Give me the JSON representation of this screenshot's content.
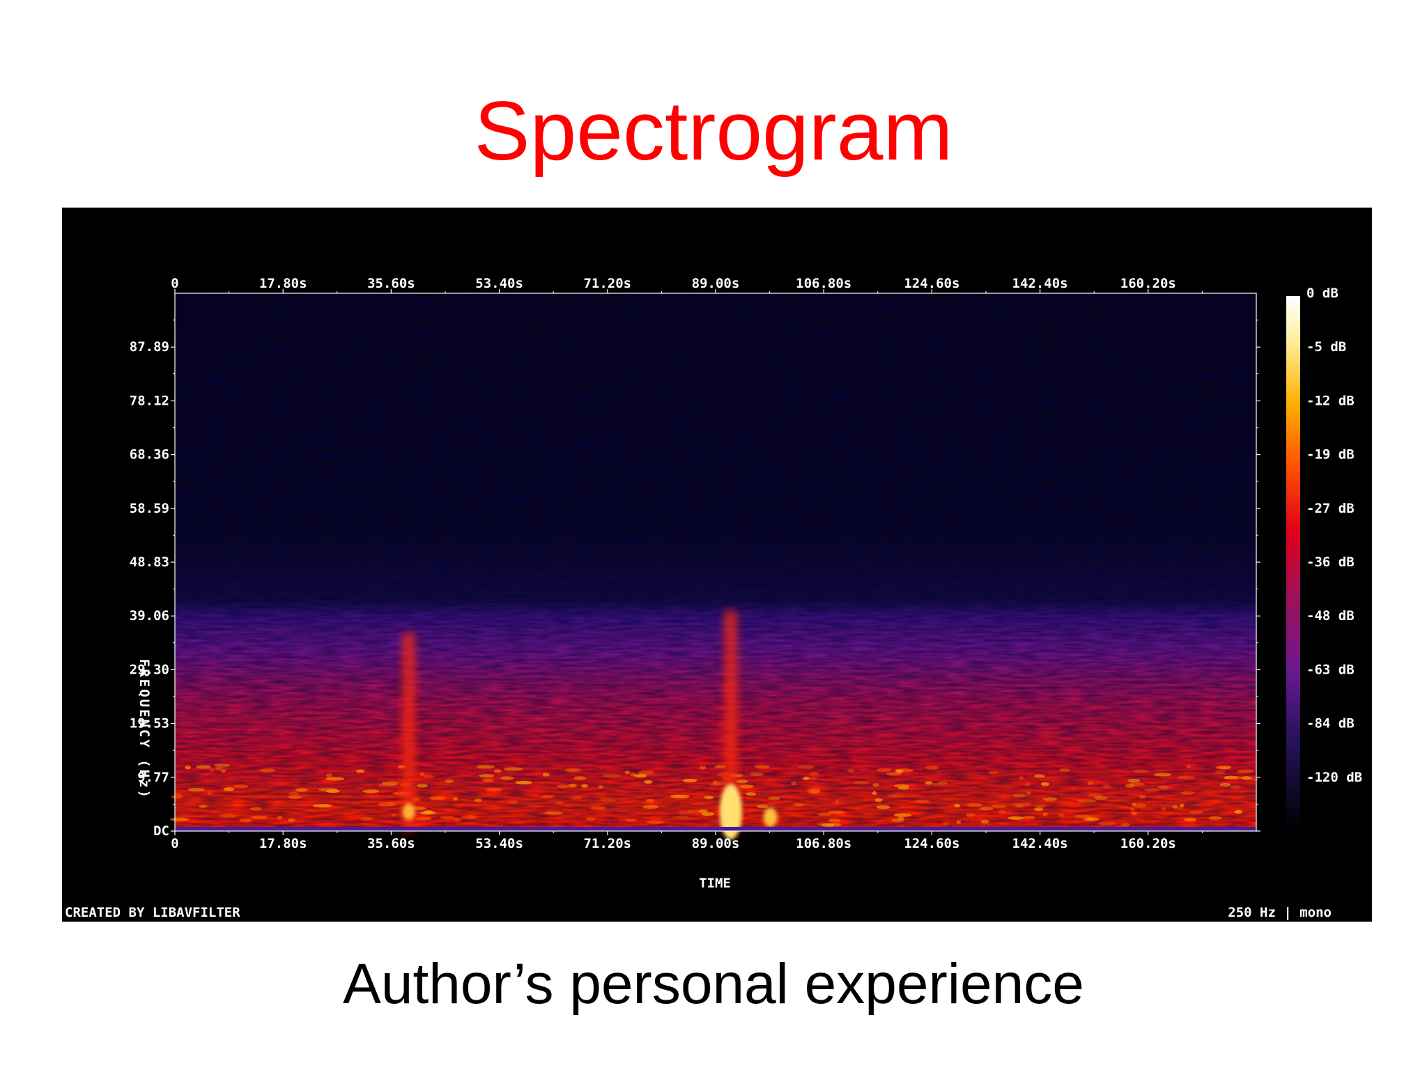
{
  "slide": {
    "title": "Spectrogram",
    "caption": "Author’s personal experience",
    "title_color": "#ff0000"
  },
  "chart_data": {
    "type": "heatmap",
    "title": "",
    "xlabel": "TIME",
    "ylabel": "FREQUENCY (Hz)",
    "x_ticks": [
      "0",
      "17.80s",
      "35.60s",
      "53.40s",
      "71.20s",
      "89.00s",
      "106.80s",
      "124.60s",
      "142.40s",
      "160.20s"
    ],
    "x_tick_values": [
      0,
      17.8,
      35.6,
      53.4,
      71.2,
      89.0,
      106.8,
      124.6,
      142.4,
      160.2
    ],
    "xlim": [
      0,
      178
    ],
    "y_ticks": [
      "87.89",
      "78.12",
      "68.36",
      "58.59",
      "48.83",
      "39.06",
      "29.30",
      "19.53",
      "9.77",
      "DC"
    ],
    "y_tick_values": [
      87.89,
      78.12,
      68.36,
      58.59,
      48.83,
      39.06,
      29.3,
      19.53,
      9.77,
      0
    ],
    "ylim": [
      0,
      97.66
    ],
    "colorbar_ticks": [
      "0 dB",
      "-5 dB",
      "-12 dB",
      "-19 dB",
      "-27 dB",
      "-36 dB",
      "-48 dB",
      "-63 dB",
      "-84 dB",
      "-120 dB"
    ],
    "colorbar_values": [
      0,
      -5,
      -12,
      -19,
      -27,
      -36,
      -48,
      -63,
      -84,
      -120
    ],
    "energy_cutoff_hz": 39.06,
    "transient_events": [
      {
        "time_s": 38.5,
        "max_freq_hz": 36.0
      },
      {
        "time_s": 91.5,
        "max_freq_hz": 40.0
      }
    ],
    "footer_left": "CREATED BY LIBAVFILTER",
    "footer_right": "250 Hz | mono",
    "colormap": [
      "#000000",
      "#100830",
      "#3b1275",
      "#8c1a8a",
      "#e0181e",
      "#ff5a00",
      "#ffc020",
      "#ffffe0"
    ],
    "grid": false
  }
}
